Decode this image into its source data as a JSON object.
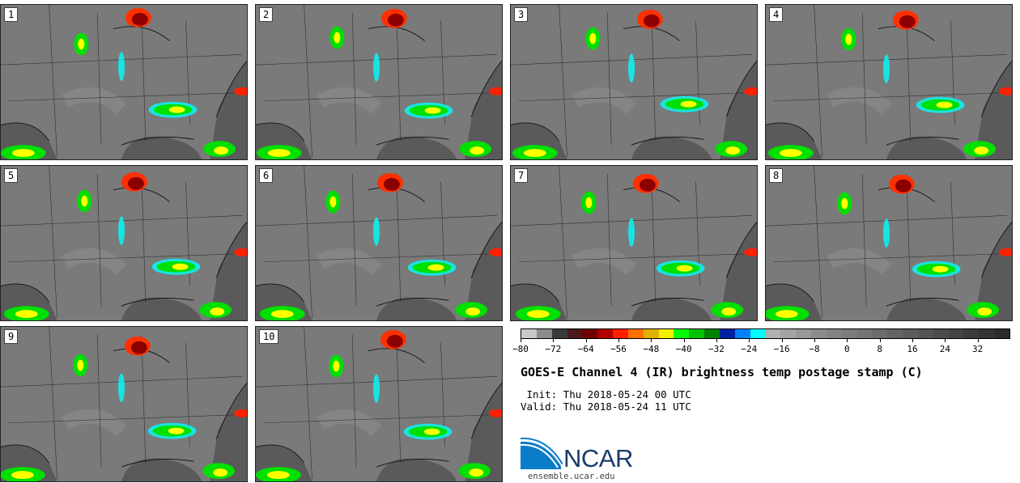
{
  "panels": [
    {
      "label": "1"
    },
    {
      "label": "2"
    },
    {
      "label": "3"
    },
    {
      "label": "4"
    },
    {
      "label": "5"
    },
    {
      "label": "6"
    },
    {
      "label": "7"
    },
    {
      "label": "8"
    },
    {
      "label": "9"
    },
    {
      "label": "10"
    }
  ],
  "colorbar": {
    "colors": [
      "#c8c8c8",
      "#8c8c8c",
      "#3a3a3a",
      "#4a1a1a",
      "#700000",
      "#b00000",
      "#ff2000",
      "#ff7000",
      "#e0b000",
      "#f0f000",
      "#00ff00",
      "#00c000",
      "#008000",
      "#0020a0",
      "#0080ff",
      "#00ffff",
      "#b0b0b0",
      "#a4a4a4",
      "#989898",
      "#8c8c8c",
      "#848484",
      "#7c7c7c",
      "#747474",
      "#6c6c6c",
      "#646464",
      "#5c5c5c",
      "#545454",
      "#4c4c4c",
      "#444444",
      "#3c3c3c",
      "#343434",
      "#2c2c2c"
    ],
    "tick_labels": [
      "−80",
      "−72",
      "−64",
      "−56",
      "−48",
      "−40",
      "−32",
      "−24",
      "−16",
      "−8",
      "0",
      "8",
      "16",
      "24",
      "32"
    ],
    "range": [
      -80,
      40
    ]
  },
  "title": "GOES-E Channel 4 (IR) brightness temp postage stamp (C)",
  "init": " Init: Thu 2018-05-24 00 UTC",
  "valid": "Valid: Thu 2018-05-24 11 UTC",
  "logo": {
    "text": "NCAR",
    "url": "ensemble.ucar.edu",
    "brand_color": "#1a3b6b",
    "accent": "#0a7cc9"
  },
  "map_colors": {
    "land": "#7a7a7a",
    "ocean": "#5a5a5a",
    "lines": "#111111",
    "cloud_cold": "#8b0000",
    "cloud_mid": "#00e000",
    "cloud_warm": "#ffff00",
    "cloud_edge": "#00ffff"
  }
}
